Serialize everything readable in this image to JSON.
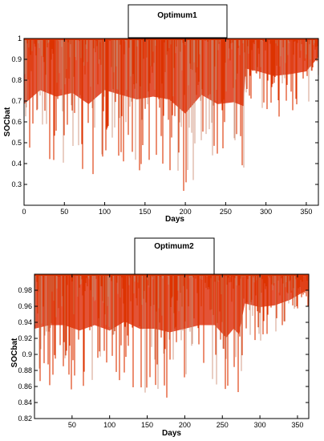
{
  "chart_data": [
    {
      "type": "line",
      "title": "Optimum1",
      "xlabel": "Days",
      "ylabel": "SOCbat",
      "xlim": [
        0,
        365
      ],
      "ylim": [
        0.2,
        1.0
      ],
      "xticks": [
        "0",
        "50",
        "100",
        "150",
        "200",
        "250",
        "300",
        "350"
      ],
      "yticks": [
        "0.3",
        "0.4",
        "0.5",
        "0.6",
        "0.7",
        "0.8",
        "0.9",
        "1"
      ],
      "grid": false,
      "series": [
        {
          "color": "#dd3300",
          "envelope": {
            "x": [
              0,
              20,
              40,
              60,
              80,
              100,
              120,
              140,
              160,
              180,
              200,
              220,
              240,
              260,
              272,
              275,
              290,
              310,
              330,
              350,
              365
            ],
            "min_y": [
              0.3,
              0.45,
              0.38,
              0.42,
              0.3,
              0.45,
              0.4,
              0.35,
              0.38,
              0.35,
              0.2,
              0.4,
              0.3,
              0.32,
              0.28,
              0.68,
              0.65,
              0.6,
              0.62,
              0.65,
              0.8
            ],
            "max_y": [
              1,
              1,
              1,
              1,
              1,
              1,
              1,
              1,
              1,
              1,
              1,
              1,
              1,
              1,
              1,
              1,
              1,
              1,
              1,
              1,
              1
            ]
          }
        }
      ]
    },
    {
      "type": "line",
      "title": "Optimum2",
      "xlabel": "Days",
      "ylabel": "SOCbat",
      "xlim": [
        0,
        365
      ],
      "ylim": [
        0.82,
        1.0
      ],
      "xticks": [
        "50",
        "100",
        "150",
        "200",
        "250",
        "300",
        "350"
      ],
      "yticks": [
        "0.82",
        "0.84",
        "0.86",
        "0.88",
        "0.9",
        "0.92",
        "0.94",
        "0.96",
        "0.98"
      ],
      "grid": false,
      "series": [
        {
          "color": "#dd3300",
          "envelope": {
            "x": [
              0,
              20,
              40,
              60,
              80,
              100,
              120,
              140,
              160,
              180,
              200,
              220,
              240,
              255,
              265,
              272,
              280,
              300,
              320,
              340,
              365
            ],
            "min_y": [
              0.85,
              0.86,
              0.86,
              0.845,
              0.86,
              0.845,
              0.87,
              0.85,
              0.85,
              0.84,
              0.85,
              0.86,
              0.86,
              0.825,
              0.85,
              0.835,
              0.92,
              0.91,
              0.915,
              0.93,
              0.96
            ],
            "max_y": [
              0.999,
              0.999,
              0.999,
              0.999,
              0.999,
              0.999,
              0.999,
              0.999,
              0.999,
              0.999,
              0.999,
              0.999,
              0.999,
              0.999,
              0.999,
              0.999,
              0.999,
              0.999,
              0.999,
              0.999,
              0.999
            ]
          }
        }
      ]
    }
  ]
}
